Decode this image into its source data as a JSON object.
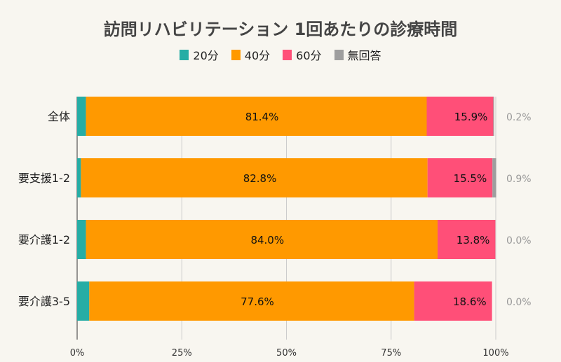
{
  "chart_data": {
    "type": "bar",
    "orientation": "horizontal",
    "stacked": true,
    "title": "訪問リハビリテーション 1回あたりの診療時間",
    "categories": [
      "全体",
      "要支援1-2",
      "要介護1-2",
      "要介護3-5"
    ],
    "series": [
      {
        "name": "20分",
        "color": "#26ada5",
        "values": [
          2.1,
          0.9,
          2.1,
          2.9
        ]
      },
      {
        "name": "40分",
        "color": "#ff9900",
        "values": [
          81.4,
          82.8,
          84.0,
          77.6
        ]
      },
      {
        "name": "60分",
        "color": "#ff4f78",
        "values": [
          15.9,
          15.5,
          13.8,
          18.6
        ]
      },
      {
        "name": "無回答",
        "color": "#9e9e9e",
        "values": [
          0.2,
          0.9,
          0.0,
          0.0
        ]
      }
    ],
    "xlim": [
      0,
      100
    ],
    "xticks": [
      "0%",
      "25%",
      "50%",
      "75%",
      "100%"
    ],
    "grid": true,
    "legend": "top",
    "xlabel": "",
    "ylabel": ""
  }
}
